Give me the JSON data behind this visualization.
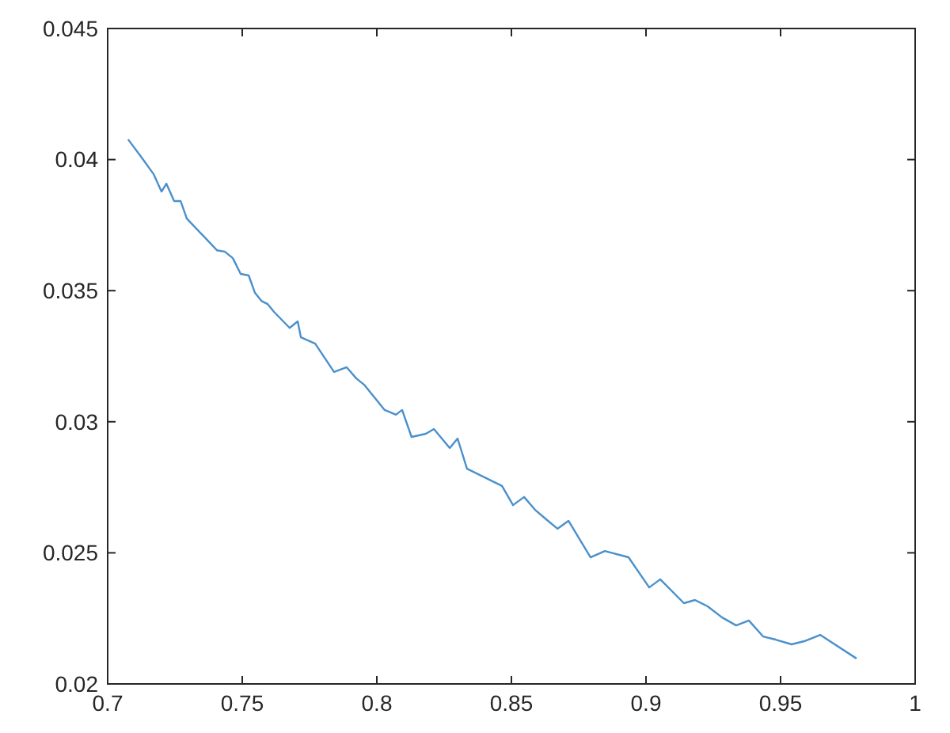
{
  "chart_data": {
    "type": "line",
    "xlim": [
      0.7,
      1
    ],
    "ylim": [
      0.02,
      0.045
    ],
    "xticks": [
      0.7,
      0.75,
      0.8,
      0.85,
      0.9,
      0.95,
      1
    ],
    "yticks": [
      0.02,
      0.025,
      0.03,
      0.035,
      0.04,
      0.045
    ],
    "grid": false,
    "marker": "none",
    "line_style": "solid",
    "series": [
      {
        "color": "#4a90cc",
        "x": [
          0.7076,
          0.7124,
          0.7171,
          0.72,
          0.7218,
          0.7247,
          0.7271,
          0.7294,
          0.7406,
          0.7435,
          0.7465,
          0.7494,
          0.7524,
          0.7547,
          0.7571,
          0.7594,
          0.7618,
          0.7676,
          0.7706,
          0.7718,
          0.7771,
          0.7841,
          0.7888,
          0.7924,
          0.7953,
          0.8029,
          0.8071,
          0.8094,
          0.8129,
          0.8182,
          0.8212,
          0.8271,
          0.83,
          0.8335,
          0.8465,
          0.8506,
          0.8547,
          0.8588,
          0.8629,
          0.8671,
          0.8712,
          0.8794,
          0.8847,
          0.8935,
          0.9012,
          0.9053,
          0.9141,
          0.9182,
          0.9229,
          0.9282,
          0.9335,
          0.9382,
          0.9435,
          0.9482,
          0.9541,
          0.9588,
          0.9647,
          0.9782
        ],
        "values": [
          0.04077,
          0.04011,
          0.03944,
          0.03878,
          0.03908,
          0.03842,
          0.03842,
          0.03775,
          0.03654,
          0.03649,
          0.03624,
          0.03564,
          0.03558,
          0.03492,
          0.03461,
          0.03449,
          0.03419,
          0.03358,
          0.03383,
          0.03322,
          0.03298,
          0.0319,
          0.03208,
          0.03165,
          0.03141,
          0.03045,
          0.03027,
          0.03045,
          0.02942,
          0.02954,
          0.02972,
          0.029,
          0.02936,
          0.02821,
          0.02755,
          0.02682,
          0.02713,
          0.02664,
          0.02628,
          0.02592,
          0.02622,
          0.02483,
          0.02507,
          0.02483,
          0.02368,
          0.02399,
          0.02308,
          0.0232,
          0.02296,
          0.02254,
          0.02223,
          0.02242,
          0.02181,
          0.02169,
          0.02151,
          0.02163,
          0.02187,
          0.02097
        ]
      }
    ]
  }
}
